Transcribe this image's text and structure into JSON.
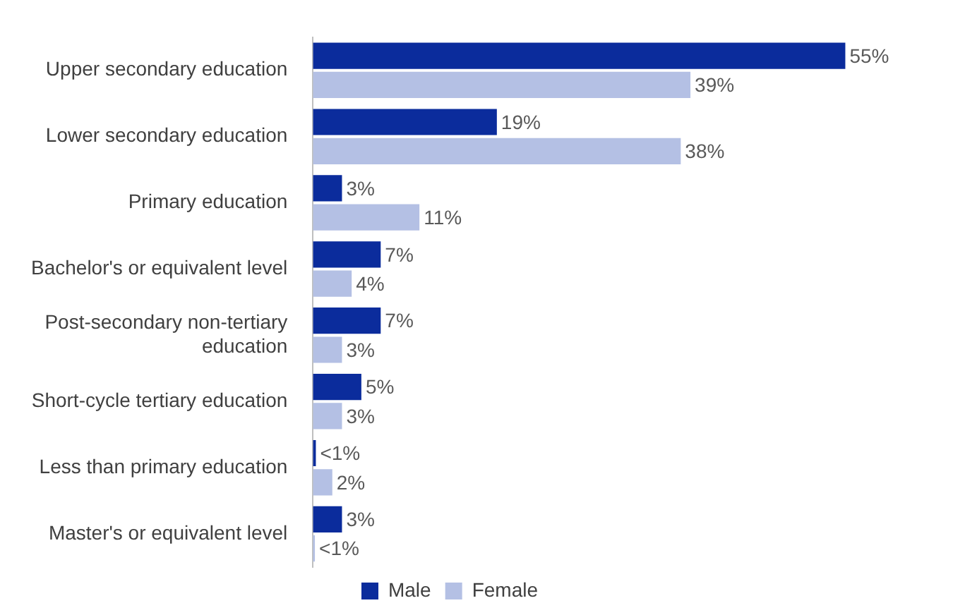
{
  "chart_data": {
    "type": "bar",
    "orientation": "horizontal",
    "categories": [
      "Upper secondary education",
      "Lower secondary education",
      "Primary education",
      "Bachelor's or equivalent level",
      "Post-secondary non-tertiary education",
      "Short-cycle tertiary education",
      "Less than primary education",
      "Master's or equivalent level"
    ],
    "series": [
      {
        "name": "Male",
        "color": "#0b2c9c",
        "values": [
          55,
          19,
          3,
          7,
          7,
          5,
          0.3,
          3
        ],
        "value_labels": [
          "55%",
          "19%",
          "3%",
          "7%",
          "7%",
          "5%",
          "<1%",
          "3%"
        ]
      },
      {
        "name": "Female",
        "color": "#b4c0e4",
        "values": [
          39,
          38,
          11,
          4,
          3,
          3,
          2,
          0.2
        ],
        "value_labels": [
          "39%",
          "38%",
          "11%",
          "4%",
          "3%",
          "3%",
          "2%",
          "<1%"
        ]
      }
    ],
    "legend": "bottom",
    "grid": false
  }
}
